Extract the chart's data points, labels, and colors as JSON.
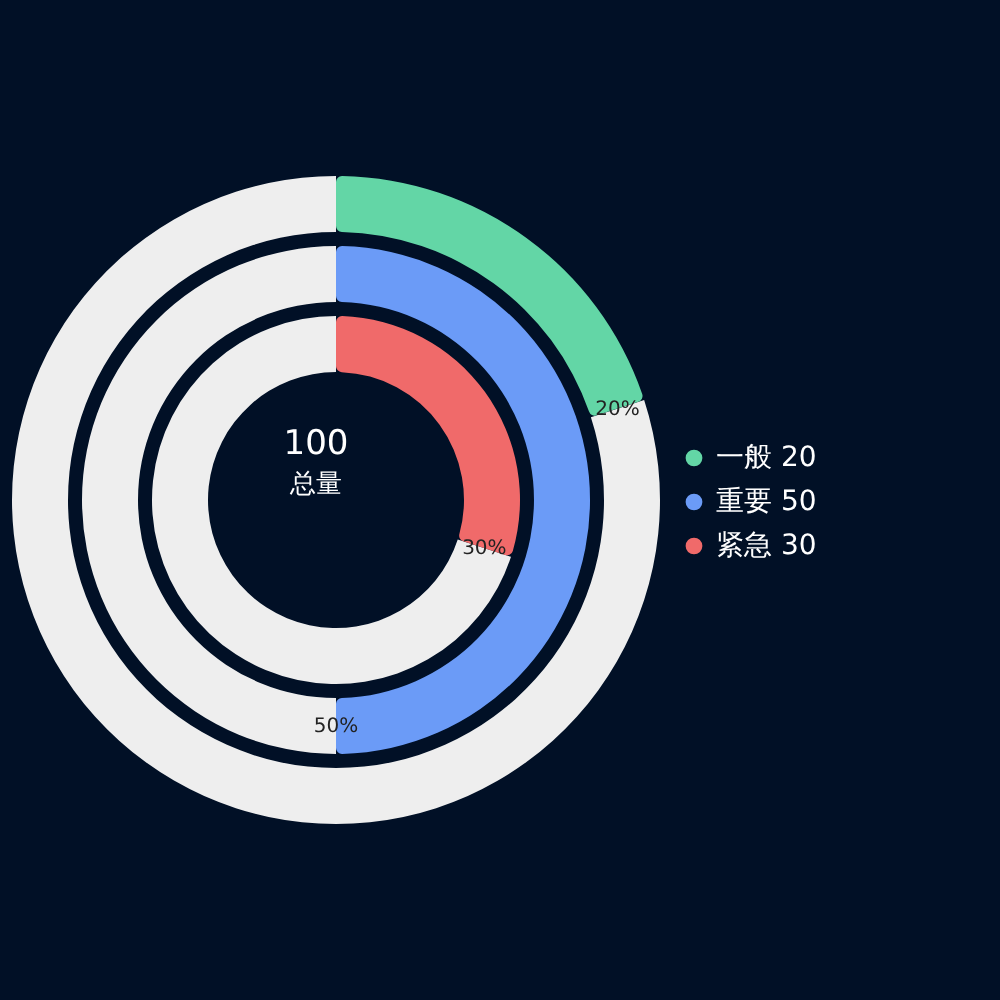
{
  "chart_data": {
    "type": "donut",
    "series": [
      {
        "name": "一般 20",
        "values": [
          20,
          80
        ],
        "colors": [
          "#63d6a6",
          "#eeeeee"
        ],
        "value_labels": [
          "20%",
          null
        ]
      },
      {
        "name": "重要 50",
        "values": [
          50,
          50
        ],
        "colors": [
          "#6b9bf7",
          "#eeeeee"
        ],
        "value_labels": [
          "50%",
          null
        ]
      },
      {
        "name": "紧急 30",
        "values": [
          30,
          70
        ],
        "colors": [
          "#f06a6a",
          "#eeeeee"
        ],
        "value_labels": [
          "30%",
          null
        ]
      }
    ],
    "annotations": [
      "100",
      "总量"
    ],
    "legend": "right"
  }
}
